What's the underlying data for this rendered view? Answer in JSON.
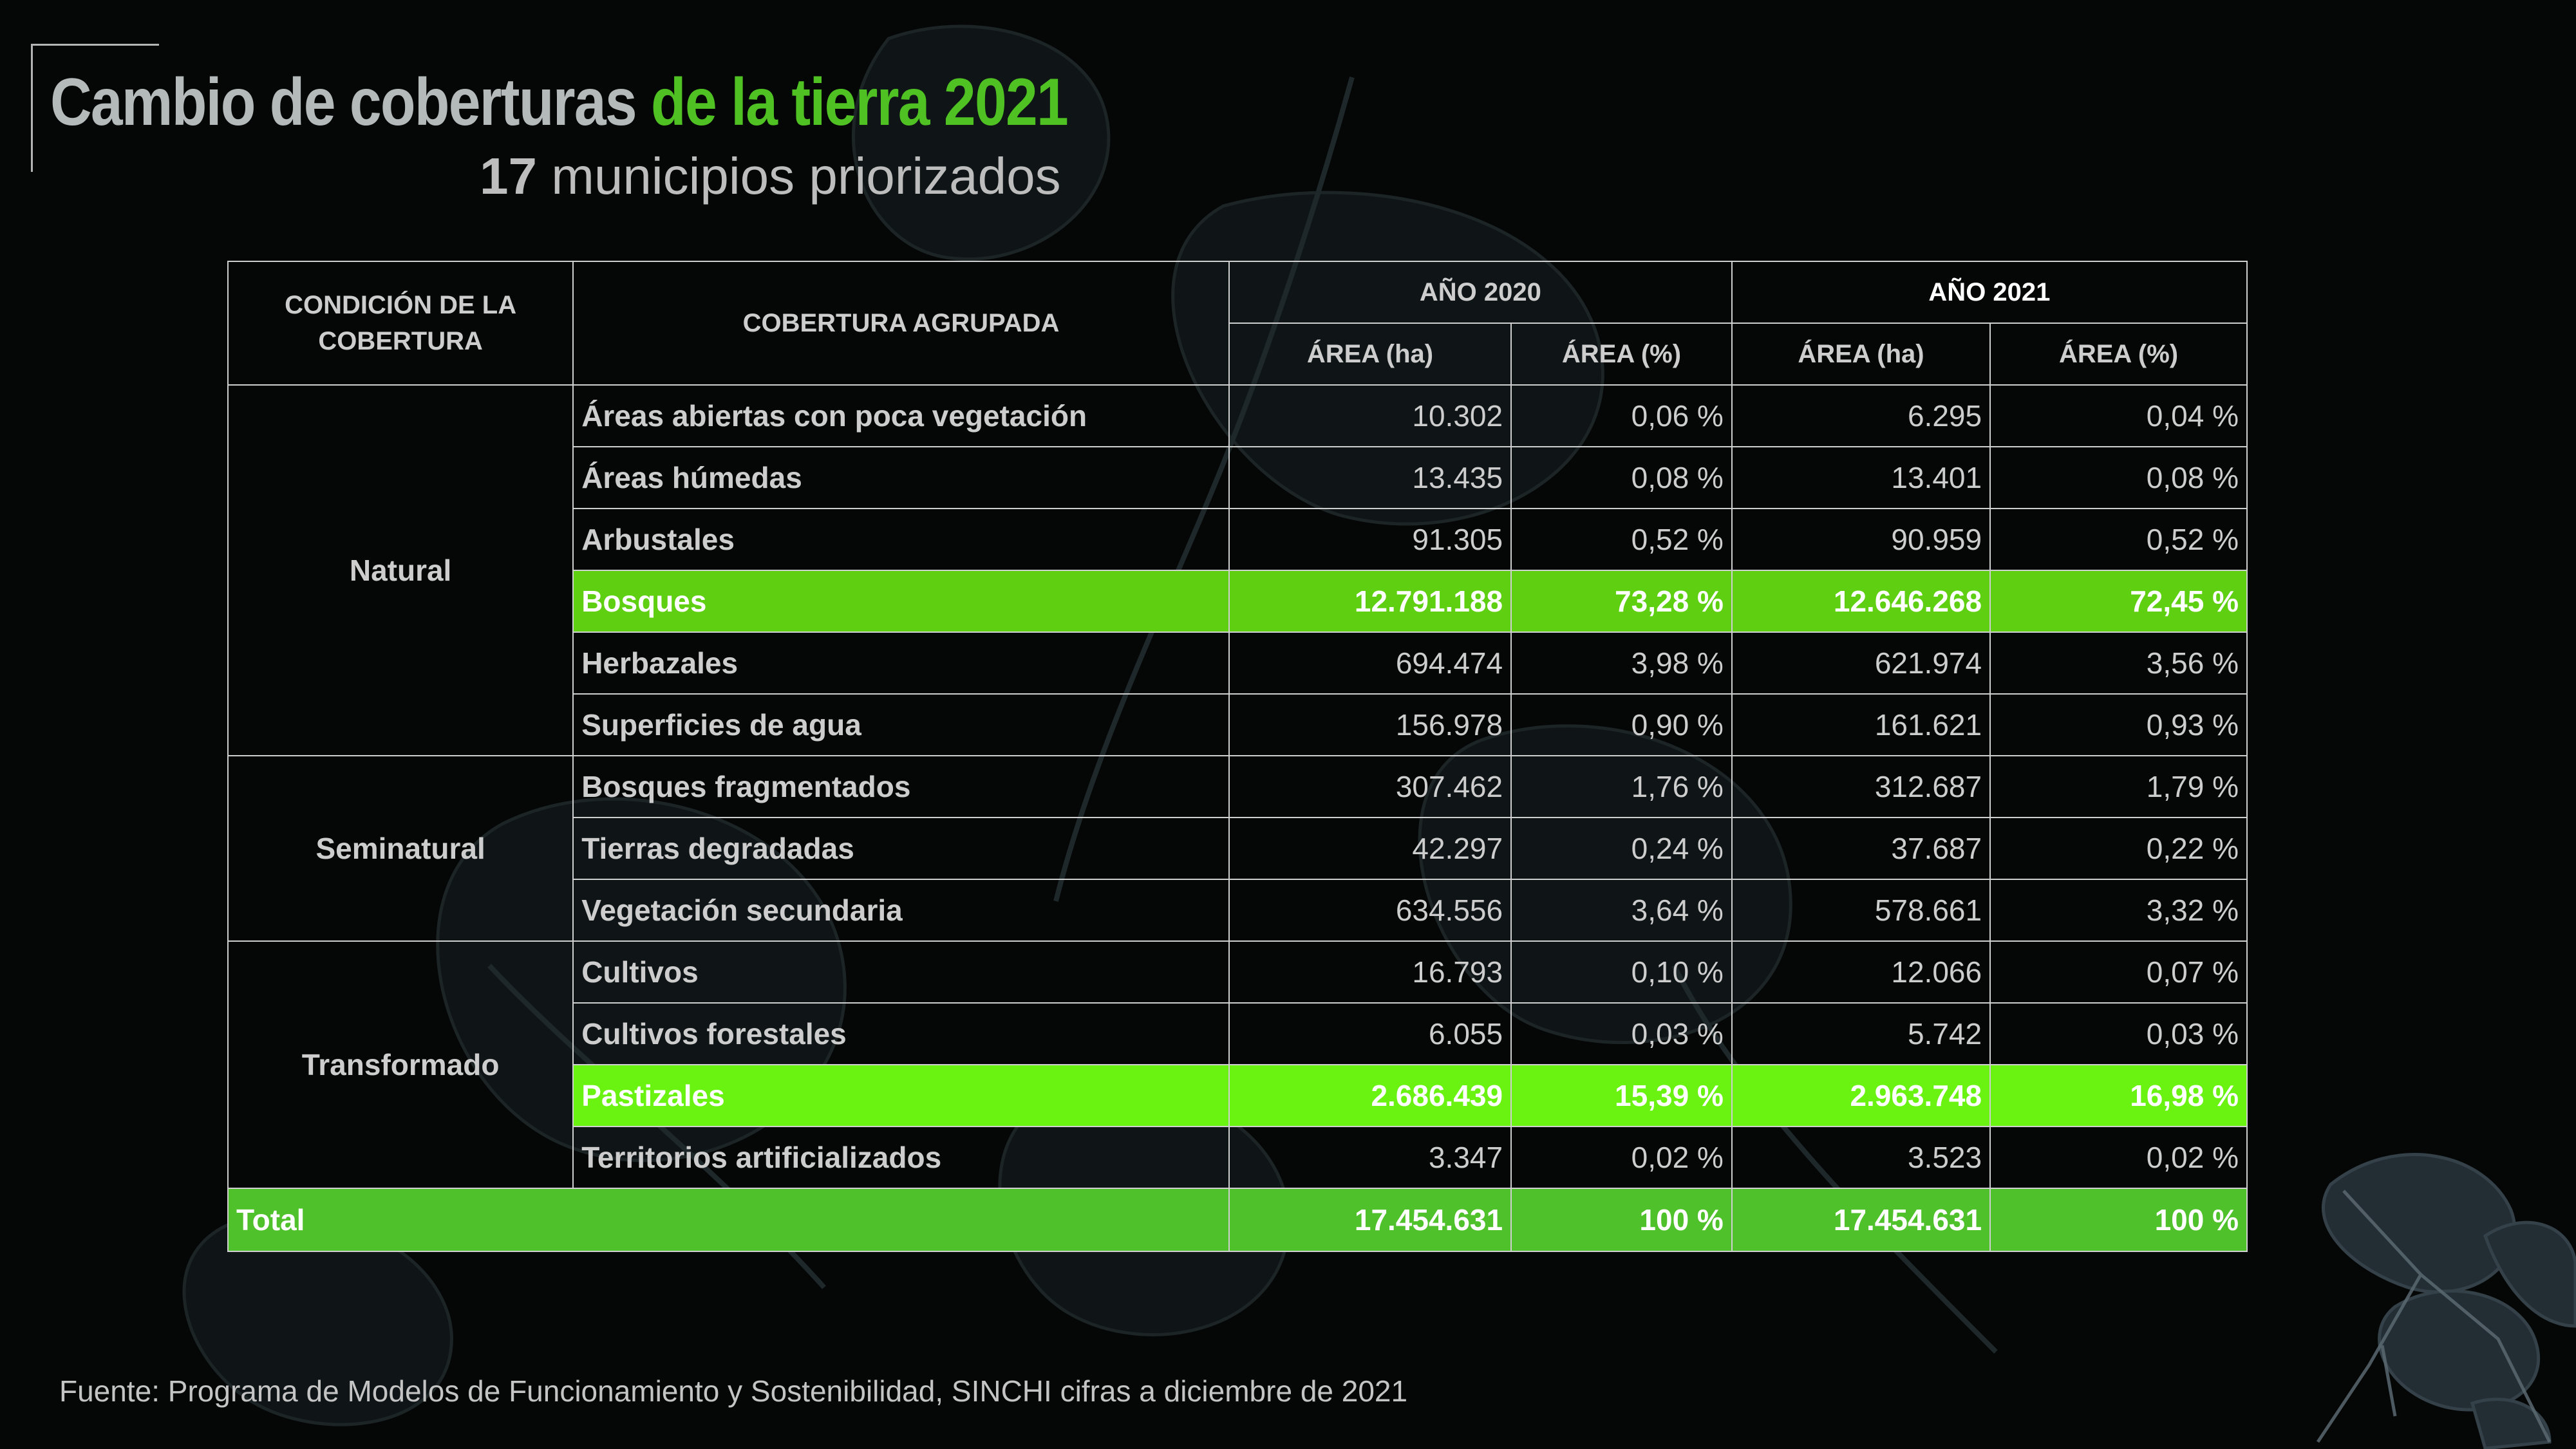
{
  "title": {
    "part1": "Cambio de coberturas ",
    "part2": "de la tierra 2021"
  },
  "subtitle": {
    "number": "17",
    "text": " municipios priorizados"
  },
  "table": {
    "headers": {
      "condicion": "CONDICIÓN DE LA COBERTURA",
      "cobertura": "COBERTURA AGRUPADA",
      "year1": "AÑO 2020",
      "year2": "AÑO 2021",
      "area_ha": "ÁREA (ha)",
      "area_pct": "ÁREA (%)"
    },
    "groups": [
      "Natural",
      "Seminatural",
      "Transformado"
    ],
    "rows": [
      {
        "cobertura": "Áreas abiertas con poca vegetación",
        "ha2020": "10.302",
        "pct2020": "0,06 %",
        "ha2021": "6.295",
        "pct2021": "0,04 %"
      },
      {
        "cobertura": "Áreas húmedas",
        "ha2020": "13.435",
        "pct2020": "0,08 %",
        "ha2021": "13.401",
        "pct2021": "0,08 %"
      },
      {
        "cobertura": "Arbustales",
        "ha2020": "91.305",
        "pct2020": "0,52 %",
        "ha2021": "90.959",
        "pct2021": "0,52 %"
      },
      {
        "cobertura": "Bosques",
        "ha2020": "12.791.188",
        "pct2020": "73,28 %",
        "ha2021": "12.646.268",
        "pct2021": "72,45 %"
      },
      {
        "cobertura": "Herbazales",
        "ha2020": "694.474",
        "pct2020": "3,98 %",
        "ha2021": "621.974",
        "pct2021": "3,56 %"
      },
      {
        "cobertura": "Superficies de agua",
        "ha2020": "156.978",
        "pct2020": "0,90 %",
        "ha2021": "161.621",
        "pct2021": "0,93 %"
      },
      {
        "cobertura": "Bosques fragmentados",
        "ha2020": "307.462",
        "pct2020": "1,76 %",
        "ha2021": "312.687",
        "pct2021": "1,79 %"
      },
      {
        "cobertura": "Tierras degradadas",
        "ha2020": "42.297",
        "pct2020": "0,24 %",
        "ha2021": "37.687",
        "pct2021": "0,22 %"
      },
      {
        "cobertura": "Vegetación secundaria",
        "ha2020": "634.556",
        "pct2020": "3,64 %",
        "ha2021": "578.661",
        "pct2021": "3,32 %"
      },
      {
        "cobertura": "Cultivos",
        "ha2020": "16.793",
        "pct2020": "0,10 %",
        "ha2021": "12.066",
        "pct2021": "0,07 %"
      },
      {
        "cobertura": "Cultivos forestales",
        "ha2020": "6.055",
        "pct2020": "0,03 %",
        "ha2021": "5.742",
        "pct2021": "0,03 %"
      },
      {
        "cobertura": "Pastizales",
        "ha2020": "2.686.439",
        "pct2020": "15,39 %",
        "ha2021": "2.963.748",
        "pct2021": "16,98 %"
      },
      {
        "cobertura": "Territorios artificializados",
        "ha2020": "3.347",
        "pct2020": "0,02 %",
        "ha2021": "3.523",
        "pct2021": "0,02 %"
      }
    ],
    "total": {
      "label": "Total",
      "ha2020": "17.454.631",
      "pct2020": "100 %",
      "ha2021": "17.454.631",
      "pct2021": "100 %"
    }
  },
  "source": "Fuente: Programa de Modelos de Funcionamiento y Sostenibilidad, SINCHI cifras a diciembre de 2021",
  "colors": {
    "highlight": "#5fcf12",
    "highlight_pastizales": "#6af211",
    "total": "#4fc12a",
    "title_accent": "#4fc123",
    "background": "#050606"
  }
}
